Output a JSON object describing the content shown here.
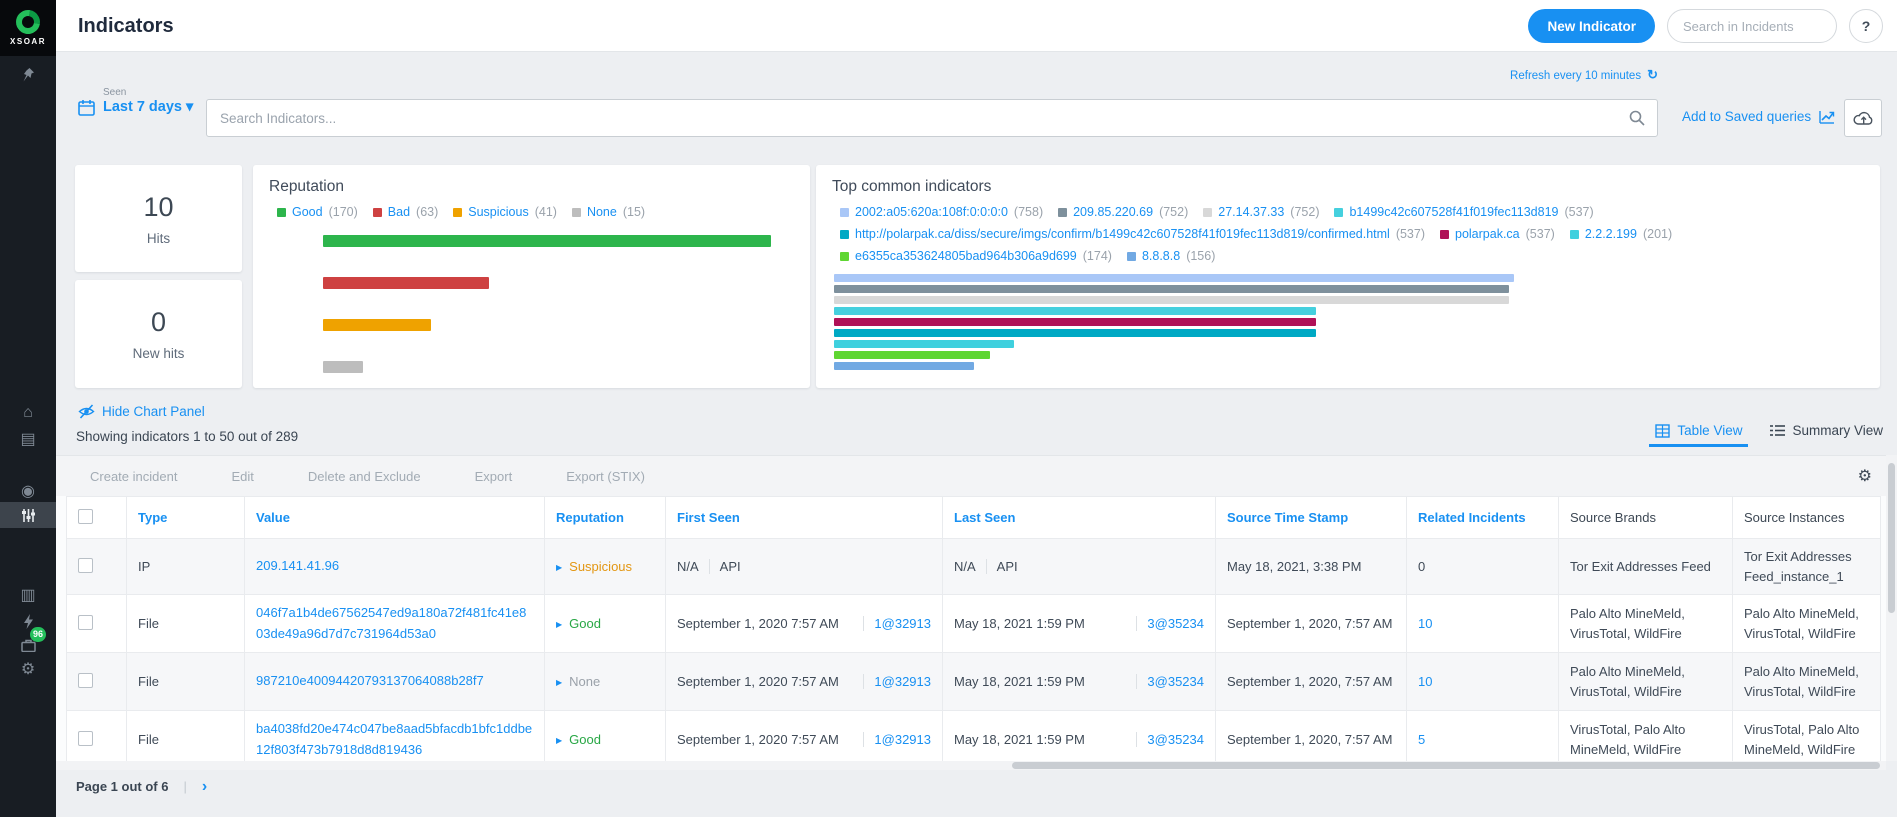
{
  "icons": {
    "home": "⌂",
    "war_room": "◉",
    "incidents": "▤",
    "docs": "▥",
    "gear": "⚙",
    "refresh": "↻",
    "caret_down": "▾",
    "triangle_right": "▶",
    "mag": "⌕"
  },
  "sidebar": {
    "logo_text": "XSOAR",
    "jobs_badge": "96"
  },
  "header": {
    "title": "Indicators",
    "new_indicator_button": "New Indicator",
    "search_placeholder": "Search in Incidents",
    "help_label": "?"
  },
  "filters": {
    "seen_label": "Seen",
    "range_label": "Last 7 days",
    "search_placeholder": "Search Indicators...",
    "refresh_label": "Refresh every 10 minutes",
    "saved_queries_label": "Add to Saved queries"
  },
  "stats": [
    {
      "value": "10",
      "label": "Hits"
    },
    {
      "value": "0",
      "label": "New hits"
    }
  ],
  "chart_data": [
    {
      "type": "bar",
      "orientation": "horizontal",
      "title": "Reputation",
      "legend_position": "top",
      "categories": [
        "Good",
        "Bad",
        "Suspicious",
        "None"
      ],
      "values": [
        170,
        63,
        41,
        15
      ],
      "colors": [
        "#2db54c",
        "#ce4141",
        "#efa200",
        "#bdbdbd"
      ],
      "xlim": [
        0,
        170
      ],
      "grid": false
    },
    {
      "type": "bar",
      "orientation": "horizontal",
      "title": "Top common indicators",
      "legend_position": "top",
      "categories": [
        "2002:a05:620a:108f:0:0:0:0",
        "209.85.220.69",
        "27.14.37.33",
        "b1499c42c607528f41f019fec113d819",
        "http://polarpak.ca/diss/secure/imgs/confirm/b1499c42c607528f41f019fec113d819/confirmed.html",
        "polarpak.ca",
        "2.2.2.199",
        "e6355ca353624805bad964b306a9d699",
        "8.8.8.8"
      ],
      "values": [
        758,
        752,
        752,
        537,
        537,
        537,
        201,
        174,
        156
      ],
      "colors": [
        "#a9c7f7",
        "#7e909c",
        "#d8d8d8",
        "#45d0de",
        "#00a9c4",
        "#b01157",
        "#3fd0de",
        "#5fd632",
        "#71a9e3"
      ],
      "bar_order": [
        0,
        1,
        2,
        3,
        5,
        4,
        6,
        7,
        8
      ],
      "xlim": [
        0,
        758
      ],
      "grid": false
    }
  ],
  "panel": {
    "hide_chart": "Hide Chart Panel",
    "showing": "Showing indicators 1 to 50 out of 289",
    "tabs": [
      {
        "label": "Table View",
        "active": true
      },
      {
        "label": "Summary View",
        "active": false
      }
    ]
  },
  "table": {
    "toolbar": [
      "Create incident",
      "Edit",
      "Delete and Exclude",
      "Export",
      "Export (STIX)"
    ],
    "columns": [
      {
        "label": "Type",
        "sortable": true
      },
      {
        "label": "Value",
        "sortable": true
      },
      {
        "label": "Reputation",
        "sortable": true
      },
      {
        "label": "First Seen",
        "sortable": true
      },
      {
        "label": "Last Seen",
        "sortable": true
      },
      {
        "label": "Source Time Stamp",
        "sortable": true
      },
      {
        "label": "Related Incidents",
        "sortable": true
      },
      {
        "label": "Source Brands",
        "sortable": false
      },
      {
        "label": "Source Instances",
        "sortable": false
      }
    ],
    "rows": [
      {
        "type": "IP",
        "value": "209.141.41.96",
        "reputation": {
          "label": "Suspicious",
          "color": "#e39713"
        },
        "first_seen": {
          "text": "N/A",
          "ref": "API",
          "ref_is_link": false
        },
        "last_seen": {
          "text": "N/A",
          "ref": "API",
          "ref_is_link": false
        },
        "source_time_stamp": "May 18, 2021, 3:38 PM",
        "related_incidents": {
          "text": "0",
          "is_link": false
        },
        "source_brands": "Tor Exit Addresses Feed",
        "source_instances": "Tor Exit Addresses Feed_instance_1"
      },
      {
        "type": "File",
        "value": "046f7a1b4de67562547ed9a180a72f481fc41e803de49a96d7d7c731964d53a0",
        "reputation": {
          "label": "Good",
          "color": "#28a745"
        },
        "first_seen": {
          "text": "September 1, 2020 7:57 AM",
          "ref": "1@32913",
          "ref_is_link": true
        },
        "last_seen": {
          "text": "May 18, 2021 1:59 PM",
          "ref": "3@35234",
          "ref_is_link": true
        },
        "source_time_stamp": "September 1, 2020, 7:57 AM",
        "related_incidents": {
          "text": "10",
          "is_link": true
        },
        "source_brands": "Palo Alto MineMeld, VirusTotal, WildFire",
        "source_instances": "Palo Alto MineMeld, VirusTotal, WildFire"
      },
      {
        "type": "File",
        "value": "987210e40094420793137064088b28f7",
        "reputation": {
          "label": "None",
          "color": "#9aa1a9"
        },
        "first_seen": {
          "text": "September 1, 2020 7:57 AM",
          "ref": "1@32913",
          "ref_is_link": true
        },
        "last_seen": {
          "text": "May 18, 2021 1:59 PM",
          "ref": "3@35234",
          "ref_is_link": true
        },
        "source_time_stamp": "September 1, 2020, 7:57 AM",
        "related_incidents": {
          "text": "10",
          "is_link": true
        },
        "source_brands": "Palo Alto MineMeld, VirusTotal, WildFire",
        "source_instances": "Palo Alto MineMeld, VirusTotal, WildFire"
      },
      {
        "type": "File",
        "value": "ba4038fd20e474c047be8aad5bfacdb1bfc1ddbe12f803f473b7918d8d819436",
        "reputation": {
          "label": "Good",
          "color": "#28a745"
        },
        "first_seen": {
          "text": "September 1, 2020 7:57 AM",
          "ref": "1@32913",
          "ref_is_link": true
        },
        "last_seen": {
          "text": "May 18, 2021 1:59 PM",
          "ref": "3@35234",
          "ref_is_link": true
        },
        "source_time_stamp": "September 1, 2020, 7:57 AM",
        "related_incidents": {
          "text": "5",
          "is_link": true
        },
        "source_brands": "VirusTotal, Palo Alto MineMeld, WildFire",
        "source_instances": "VirusTotal, Palo Alto MineMeld, WildFire"
      }
    ]
  },
  "pagination": {
    "label": "Page 1 out of 6",
    "divider": "|",
    "next": "›"
  }
}
